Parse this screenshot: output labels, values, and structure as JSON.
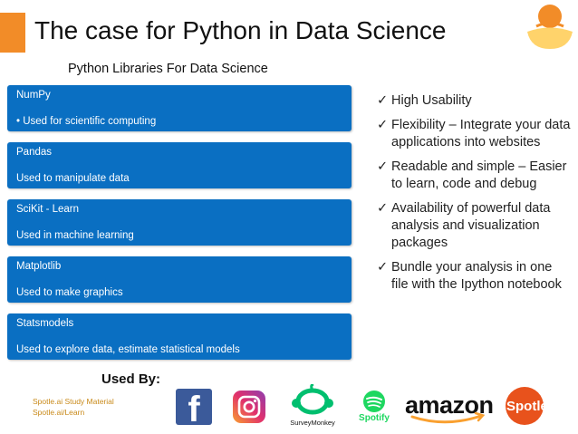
{
  "slide": {
    "title": "The case for Python in Data Science",
    "subtitle": "Python Libraries For Data Science"
  },
  "libraries": [
    {
      "name": "NumPy",
      "desc": "• Used for scientific computing"
    },
    {
      "name": "Pandas",
      "desc": " Used to manipulate data"
    },
    {
      "name": "SciKit - Learn",
      "desc": "Used in machine learning"
    },
    {
      "name": "Matplotlib",
      "desc": "Used to make graphics"
    },
    {
      "name": "Statsmodels",
      "desc": "Used to explore data, estimate statistical models"
    }
  ],
  "benefits": [
    {
      "check": "✓",
      "text": "High Usability"
    },
    {
      "check": "✓",
      "text": "Flexibility – Integrate your data applications into websites"
    },
    {
      "check": "✓",
      "text": "Readable and simple – Easier to learn, code and debug"
    },
    {
      "check": "✓",
      "text": "Availability of powerful data analysis and visualization packages"
    },
    {
      "check": "✓",
      "text": "Bundle your analysis in one file with the Ipython notebook"
    }
  ],
  "used_by": {
    "label": "Used By:",
    "logos": {
      "facebook": "f",
      "surveymonkey": "SurveyMonkey",
      "spotify": "Spotify",
      "amazon": "amazon",
      "spotle": "Spotle.ai"
    }
  },
  "footer": {
    "line1": "Spotle.ai Study Material",
    "line2": "Spotle.ai/Learn"
  },
  "colors": {
    "accent": "#f28c28",
    "box": "#0a6fc2",
    "footer_text": "#c98a1a",
    "facebook": "#3b5a9a",
    "spotify": "#1ed760",
    "surveymonkey": "#00bf6f",
    "spotle": "#e8521c"
  }
}
